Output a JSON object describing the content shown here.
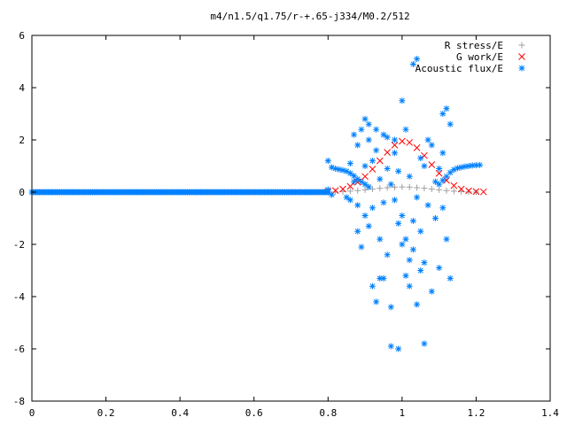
{
  "chart_data": {
    "type": "scatter",
    "title": "m4/n1.5/q1.75/r-+.65-j334/M0.2/512",
    "xlabel": "",
    "ylabel": "",
    "xlim": [
      0,
      1.4
    ],
    "ylim": [
      -8,
      6
    ],
    "xticks": [
      "0",
      "0.2",
      "0.4",
      "0.6",
      "0.8",
      "1",
      "1.2",
      "1.4"
    ],
    "yticks": [
      "-8",
      "-6",
      "-4",
      "-2",
      "0",
      "2",
      "4",
      "6"
    ],
    "legend_position": "top-right",
    "grid": false,
    "series": [
      {
        "name": "R stress/E",
        "marker": "plus",
        "color": "#a0a0a0",
        "points": [
          [
            0.8,
            0.0
          ],
          [
            0.82,
            0.01
          ],
          [
            0.84,
            0.02
          ],
          [
            0.86,
            0.04
          ],
          [
            0.88,
            0.06
          ],
          [
            0.9,
            0.09
          ],
          [
            0.92,
            0.12
          ],
          [
            0.94,
            0.15
          ],
          [
            0.96,
            0.17
          ],
          [
            0.98,
            0.19
          ],
          [
            1.0,
            0.2
          ],
          [
            1.02,
            0.19
          ],
          [
            1.04,
            0.17
          ],
          [
            1.06,
            0.15
          ],
          [
            1.08,
            0.12
          ],
          [
            1.1,
            0.09
          ],
          [
            1.12,
            0.06
          ],
          [
            1.14,
            0.04
          ],
          [
            1.16,
            0.02
          ],
          [
            1.18,
            0.01
          ],
          [
            1.2,
            0.0
          ]
        ]
      },
      {
        "name": "G work/E",
        "marker": "cross",
        "color": "#ff0000",
        "points": [
          [
            0.8,
            0.03
          ],
          [
            0.82,
            0.06
          ],
          [
            0.84,
            0.12
          ],
          [
            0.86,
            0.22
          ],
          [
            0.88,
            0.38
          ],
          [
            0.9,
            0.6
          ],
          [
            0.92,
            0.88
          ],
          [
            0.94,
            1.2
          ],
          [
            0.96,
            1.52
          ],
          [
            0.98,
            1.8
          ],
          [
            1.0,
            1.95
          ],
          [
            1.02,
            1.9
          ],
          [
            1.04,
            1.7
          ],
          [
            1.06,
            1.4
          ],
          [
            1.08,
            1.05
          ],
          [
            1.1,
            0.72
          ],
          [
            1.12,
            0.45
          ],
          [
            1.14,
            0.25
          ],
          [
            1.16,
            0.12
          ],
          [
            1.18,
            0.05
          ],
          [
            1.2,
            0.02
          ],
          [
            1.22,
            0.01
          ]
        ]
      },
      {
        "name": "Acoustic flux/E",
        "marker": "star",
        "color": "#0080ff",
        "baseline": {
          "x_start": 0.0,
          "x_end": 0.8,
          "y": 0.0
        },
        "points": [
          [
            0.8,
            1.2
          ],
          [
            0.81,
            0.95
          ],
          [
            0.82,
            0.9
          ],
          [
            0.83,
            0.87
          ],
          [
            0.84,
            0.84
          ],
          [
            0.85,
            0.8
          ],
          [
            0.86,
            0.72
          ],
          [
            0.87,
            0.62
          ],
          [
            0.88,
            0.5
          ],
          [
            0.89,
            0.4
          ],
          [
            0.9,
            0.3
          ],
          [
            0.91,
            0.2
          ],
          [
            1.1,
            0.3
          ],
          [
            1.11,
            0.45
          ],
          [
            1.12,
            0.6
          ],
          [
            1.13,
            0.75
          ],
          [
            1.14,
            0.86
          ],
          [
            1.15,
            0.92
          ],
          [
            1.16,
            0.95
          ],
          [
            1.17,
            0.98
          ],
          [
            1.18,
            1.0
          ],
          [
            1.19,
            1.02
          ],
          [
            1.2,
            1.03
          ],
          [
            1.21,
            1.04
          ],
          [
            0.8,
            0.1
          ],
          [
            0.81,
            -0.1
          ],
          [
            0.85,
            -0.2
          ],
          [
            0.86,
            1.1
          ],
          [
            0.86,
            -0.3
          ],
          [
            0.87,
            2.2
          ],
          [
            0.87,
            0.4
          ],
          [
            0.88,
            -0.5
          ],
          [
            0.88,
            -1.5
          ],
          [
            0.88,
            1.8
          ],
          [
            0.89,
            2.4
          ],
          [
            0.89,
            -2.1
          ],
          [
            0.9,
            2.8
          ],
          [
            0.9,
            -0.9
          ],
          [
            0.9,
            1.0
          ],
          [
            0.91,
            2.0
          ],
          [
            0.91,
            -1.3
          ],
          [
            0.91,
            2.6
          ],
          [
            0.92,
            -3.6
          ],
          [
            0.92,
            1.2
          ],
          [
            0.92,
            -0.6
          ],
          [
            0.93,
            -4.2
          ],
          [
            0.93,
            1.6
          ],
          [
            0.93,
            2.4
          ],
          [
            0.94,
            -3.3
          ],
          [
            0.94,
            0.5
          ],
          [
            0.94,
            -1.8
          ],
          [
            0.95,
            2.2
          ],
          [
            0.95,
            -3.3
          ],
          [
            0.95,
            -0.4
          ],
          [
            0.96,
            0.9
          ],
          [
            0.96,
            -2.4
          ],
          [
            0.96,
            2.1
          ],
          [
            0.97,
            -4.4
          ],
          [
            0.97,
            0.3
          ],
          [
            0.97,
            -5.9
          ],
          [
            0.98,
            1.5
          ],
          [
            0.98,
            -0.3
          ],
          [
            0.98,
            2.0
          ],
          [
            0.99,
            -6.0
          ],
          [
            0.99,
            -1.2
          ],
          [
            0.99,
            0.8
          ],
          [
            1.0,
            3.5
          ],
          [
            1.0,
            -2.0
          ],
          [
            1.0,
            -0.9
          ],
          [
            1.01,
            2.4
          ],
          [
            1.01,
            -3.2
          ],
          [
            1.01,
            -1.8
          ],
          [
            1.02,
            0.6
          ],
          [
            1.02,
            -2.6
          ],
          [
            1.02,
            -3.6
          ],
          [
            1.03,
            4.9
          ],
          [
            1.03,
            -1.1
          ],
          [
            1.03,
            -2.2
          ],
          [
            1.04,
            5.1
          ],
          [
            1.04,
            -4.3
          ],
          [
            1.04,
            -0.2
          ],
          [
            1.05,
            -3.0
          ],
          [
            1.05,
            1.3
          ],
          [
            1.05,
            -1.5
          ],
          [
            1.06,
            -5.8
          ],
          [
            1.06,
            1.0
          ],
          [
            1.06,
            -2.7
          ],
          [
            1.07,
            2.0
          ],
          [
            1.07,
            -0.5
          ],
          [
            1.08,
            1.8
          ],
          [
            1.08,
            -3.8
          ],
          [
            1.09,
            -1.0
          ],
          [
            1.09,
            0.4
          ],
          [
            1.1,
            -2.9
          ],
          [
            1.1,
            0.9
          ],
          [
            1.11,
            1.5
          ],
          [
            1.11,
            3.0
          ],
          [
            1.11,
            -0.6
          ],
          [
            1.12,
            3.2
          ],
          [
            1.12,
            -1.8
          ],
          [
            1.13,
            2.6
          ],
          [
            1.13,
            -3.3
          ]
        ]
      }
    ]
  }
}
